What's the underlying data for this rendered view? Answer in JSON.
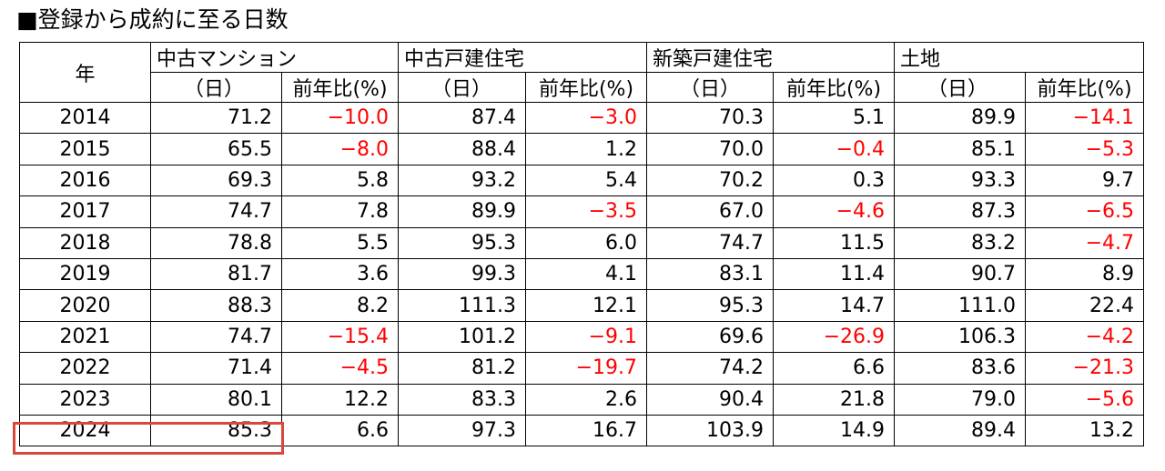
{
  "title": "■登録から成約に至る日数",
  "headers": {
    "year": "年",
    "categories": [
      "中古マンション",
      "中古戸建住宅",
      "新築戸建住宅",
      "土地"
    ],
    "days": "（日）",
    "ratio": "前年比(%)"
  },
  "rows": [
    {
      "year": "2014",
      "v": [
        "71.2",
        "−10.0",
        "87.4",
        "−3.0",
        "70.3",
        "5.1",
        "89.9",
        "−14.1"
      ]
    },
    {
      "year": "2015",
      "v": [
        "65.5",
        "−8.0",
        "88.4",
        "1.2",
        "70.0",
        "−0.4",
        "85.1",
        "−5.3"
      ]
    },
    {
      "year": "2016",
      "v": [
        "69.3",
        "5.8",
        "93.2",
        "5.4",
        "70.2",
        "0.3",
        "93.3",
        "9.7"
      ]
    },
    {
      "year": "2017",
      "v": [
        "74.7",
        "7.8",
        "89.9",
        "−3.5",
        "67.0",
        "−4.6",
        "87.3",
        "−6.5"
      ]
    },
    {
      "year": "2018",
      "v": [
        "78.8",
        "5.5",
        "95.3",
        "6.0",
        "74.7",
        "11.5",
        "83.2",
        "−4.7"
      ]
    },
    {
      "year": "2019",
      "v": [
        "81.7",
        "3.6",
        "99.3",
        "4.1",
        "83.1",
        "11.4",
        "90.7",
        "8.9"
      ]
    },
    {
      "year": "2020",
      "v": [
        "88.3",
        "8.2",
        "111.3",
        "12.1",
        "95.3",
        "14.7",
        "111.0",
        "22.4"
      ]
    },
    {
      "year": "2021",
      "v": [
        "74.7",
        "−15.4",
        "101.2",
        "−9.1",
        "69.6",
        "−26.9",
        "106.3",
        "−4.2"
      ]
    },
    {
      "year": "2022",
      "v": [
        "71.4",
        "−4.5",
        "81.2",
        "−19.7",
        "74.2",
        "6.6",
        "83.6",
        "−21.3"
      ]
    },
    {
      "year": "2023",
      "v": [
        "80.1",
        "12.2",
        "83.3",
        "2.6",
        "90.4",
        "21.8",
        "79.0",
        "−5.6"
      ]
    },
    {
      "year": "2024",
      "v": [
        "85.3",
        "6.6",
        "97.3",
        "16.7",
        "103.9",
        "14.9",
        "89.4",
        "13.2"
      ]
    }
  ],
  "colors": {
    "negative": "#ff0000",
    "highlight_border": "#d9473d"
  }
}
